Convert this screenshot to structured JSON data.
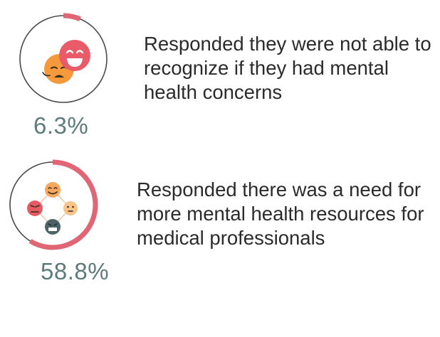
{
  "chart_data": [
    {
      "type": "donut",
      "value": 6.3,
      "value_label": "6.3%",
      "description": "Responded they were not able to recognize if they had mental health concerns",
      "icon": "happy-and-sad-faces-icon",
      "colors": {
        "arc": "#e06676",
        "ring": "#4a4a4a",
        "label": "#5e7b7c"
      }
    },
    {
      "type": "donut",
      "value": 58.8,
      "value_label": "58.8%",
      "description": "Responded there was a need for more mental health resources for medical professionals",
      "icon": "four-emotion-faces-icon",
      "colors": {
        "arc": "#e06676",
        "ring": "#4a4a4a",
        "label": "#5e7b7c"
      }
    }
  ]
}
